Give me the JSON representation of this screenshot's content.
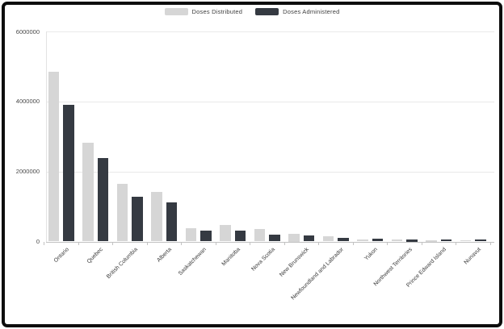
{
  "chart_data": {
    "type": "bar",
    "title": "",
    "categories": [
      "Ontario",
      "Quebec",
      "British Columbia",
      "Alberta",
      "Saskatchewan",
      "Manitoba",
      "Nova Scotia",
      "New Brunswick",
      "Newfoundland and Labrador",
      "Yukon",
      "Northwest Territories",
      "Prince Edward Island",
      "Nunavut"
    ],
    "series": [
      {
        "name": "Doses Distributed",
        "color": "#d6d6d6",
        "values": [
          4850000,
          2830000,
          1650000,
          1410000,
          370000,
          470000,
          350000,
          230000,
          140000,
          60000,
          55000,
          35000,
          30000
        ]
      },
      {
        "name": "Doses Administered",
        "color": "#353a42",
        "values": [
          3900000,
          2390000,
          1270000,
          1120000,
          320000,
          320000,
          200000,
          180000,
          110000,
          75000,
          70000,
          60000,
          55000
        ]
      }
    ],
    "xlabel": "",
    "ylabel": "",
    "ylim": [
      0,
      6000000
    ],
    "yticks": [
      0,
      2000000,
      4000000,
      6000000
    ],
    "ytick_labels": [
      "0",
      "2000000",
      "4000000",
      "6000000"
    ],
    "grid": true,
    "legend_position": "top",
    "colors": {
      "background": "#ffffff",
      "frame_border": "#0d0d0d",
      "gridline": "#e9e9e9",
      "axis_line": "#c2c2c2",
      "label_text": "#3a3a3a"
    }
  }
}
